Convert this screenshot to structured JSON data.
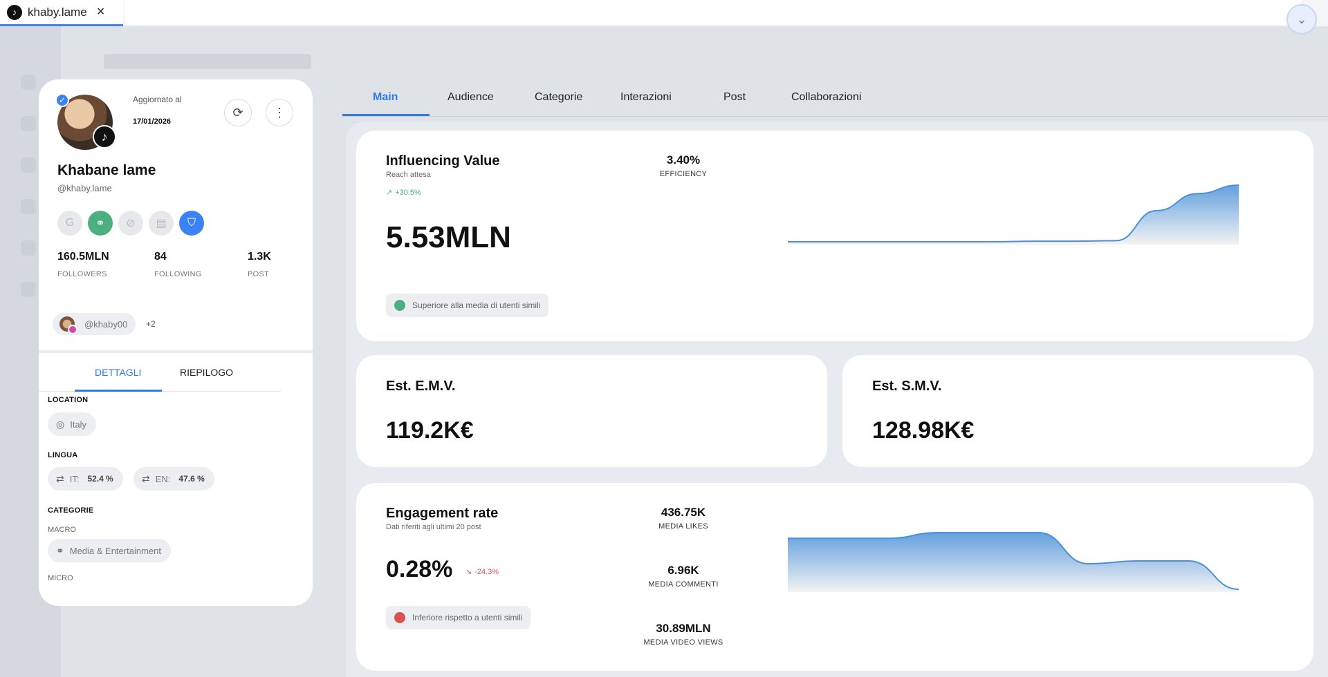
{
  "browser": {
    "tab_title": "khaby.lame",
    "tab_close": "×",
    "favicon": "tiktok-icon",
    "corner_icon": "chevron-down-icon"
  },
  "profile": {
    "updated_label": "Aggiornato al",
    "updated_date": "17/01/2026",
    "name": "Khabane lame",
    "handle": "@khaby.lame",
    "stats": [
      {
        "value": "160.5MLN",
        "label": "FOLLOWERS"
      },
      {
        "value": "84",
        "label": "FOLLOWING"
      },
      {
        "value": "1.3K",
        "label": "POST"
      }
    ],
    "linked_account": "@khaby00",
    "linked_more": "+2",
    "tabs": [
      "DETTAGLI",
      "RIEPILOGO"
    ],
    "active_tab": "DETTAGLI",
    "location_label": "LOCATION",
    "location_value": "Italy",
    "language_label": "LINGUA",
    "languages": [
      {
        "code": "IT:",
        "pct": "52.4 %"
      },
      {
        "code": "EN:",
        "pct": "47.6 %"
      }
    ],
    "categories_label": "CATEGORIE",
    "macro_label": "MACRO",
    "macro_value": "Media & Entertainment",
    "micro_label": "MICRO"
  },
  "main_tabs": [
    "Main",
    "Audience",
    "Categorie",
    "Interazioni",
    "Post",
    "Collaborazioni"
  ],
  "active_main_tab": "Main",
  "influencing": {
    "title": "Influencing Value",
    "subtitle": "Reach attesa",
    "trend": "+30.5%",
    "value": "5.53MLN",
    "efficiency_value": "3.40%",
    "efficiency_label": "EFFICIENCY",
    "compare_text": "Superiore alla media di utenti simili",
    "compare_color": "#4caf82",
    "chart_series": [
      0.0,
      0.0,
      0.0,
      0.0,
      0.0,
      0.0,
      0.01,
      0.01,
      0.02,
      0.55,
      0.85,
      1.0
    ]
  },
  "emv": {
    "title": "Est. E.M.V.",
    "value": "119.2K€"
  },
  "smv": {
    "title": "Est. S.M.V.",
    "value": "128.98K€"
  },
  "engagement": {
    "title": "Engagement rate",
    "subtitle": "Dati riferiti agli ultimi 20 post",
    "value": "0.28%",
    "trend": "-24.3%",
    "compare_text": "Inferiore rispetto a utenti simili",
    "compare_color": "#d9534f",
    "metrics": [
      {
        "value": "436.75K",
        "label": "MEDIA LIKES"
      },
      {
        "value": "6.96K",
        "label": "MEDIA COMMENTI"
      },
      {
        "value": "30.89MLN",
        "label": "MEDIA VIDEO VIEWS"
      }
    ],
    "chart_series": [
      0.9,
      0.9,
      0.9,
      1.0,
      1.0,
      1.0,
      0.45,
      0.5,
      0.5,
      0.0
    ]
  },
  "colors": {
    "accent": "#2f7ae5",
    "positive": "#4caf82",
    "negative": "#d9534f"
  }
}
